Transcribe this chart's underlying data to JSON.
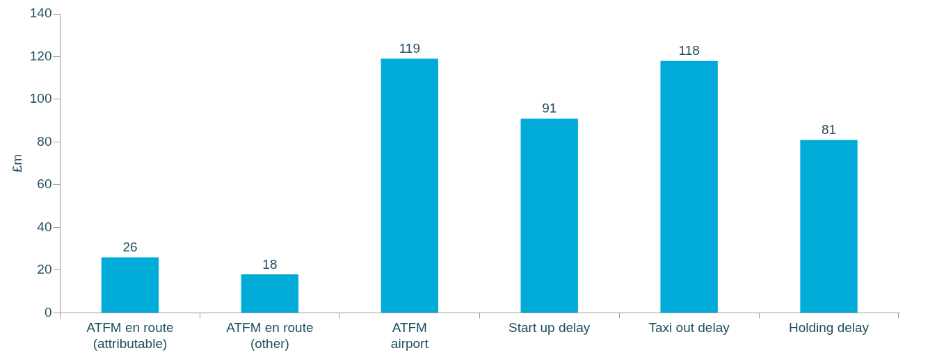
{
  "chart_data": {
    "type": "bar",
    "ylabel": "£m",
    "categories": [
      "ATFM en route\n(attributable)",
      "ATFM en route\n(other)",
      "ATFM\nairport",
      "Start up delay",
      "Taxi out delay",
      "Holding delay"
    ],
    "values": [
      26,
      18,
      119,
      91,
      118,
      81
    ],
    "color": "#00acd7",
    "ylim": [
      0,
      140
    ],
    "yticks": [
      0,
      20,
      40,
      60,
      80,
      100,
      120,
      140
    ],
    "grid": false,
    "legend": false,
    "data_labels": true
  }
}
